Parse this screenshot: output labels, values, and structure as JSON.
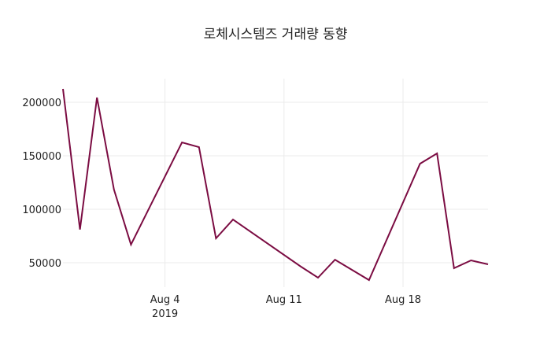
{
  "chart_data": {
    "type": "line",
    "title": "로체시스템즈 거래량 동향",
    "xlabel": "",
    "ylabel": "",
    "x": [
      "2019-07-29",
      "2019-07-30",
      "2019-07-31",
      "2019-08-01",
      "2019-08-02",
      "2019-08-05",
      "2019-08-06",
      "2019-08-07",
      "2019-08-08",
      "2019-08-12",
      "2019-08-13",
      "2019-08-14",
      "2019-08-16",
      "2019-08-19",
      "2019-08-20",
      "2019-08-21",
      "2019-08-22",
      "2019-08-23"
    ],
    "series": [
      {
        "name": "거래량",
        "color": "#7b0c42",
        "values": [
          212500,
          81000,
          204400,
          118400,
          67000,
          162500,
          158100,
          72800,
          90400,
          46300,
          36000,
          52900,
          33800,
          142600,
          152200,
          44900,
          52200,
          48500
        ]
      }
    ],
    "yticks": [
      50000,
      100000,
      150000,
      200000
    ],
    "ytick_labels": [
      "50000",
      "100000",
      "150000",
      "200000"
    ],
    "xticks": [
      "2019-08-04",
      "2019-08-11",
      "2019-08-18"
    ],
    "xtick_labels": [
      "Aug 4",
      "Aug 11",
      "Aug 18"
    ],
    "xtick_sublabel": "2019",
    "xlim": [
      "2019-07-29",
      "2019-08-23"
    ],
    "ylim": [
      25000,
      220000
    ],
    "grid": true,
    "legend": false
  }
}
